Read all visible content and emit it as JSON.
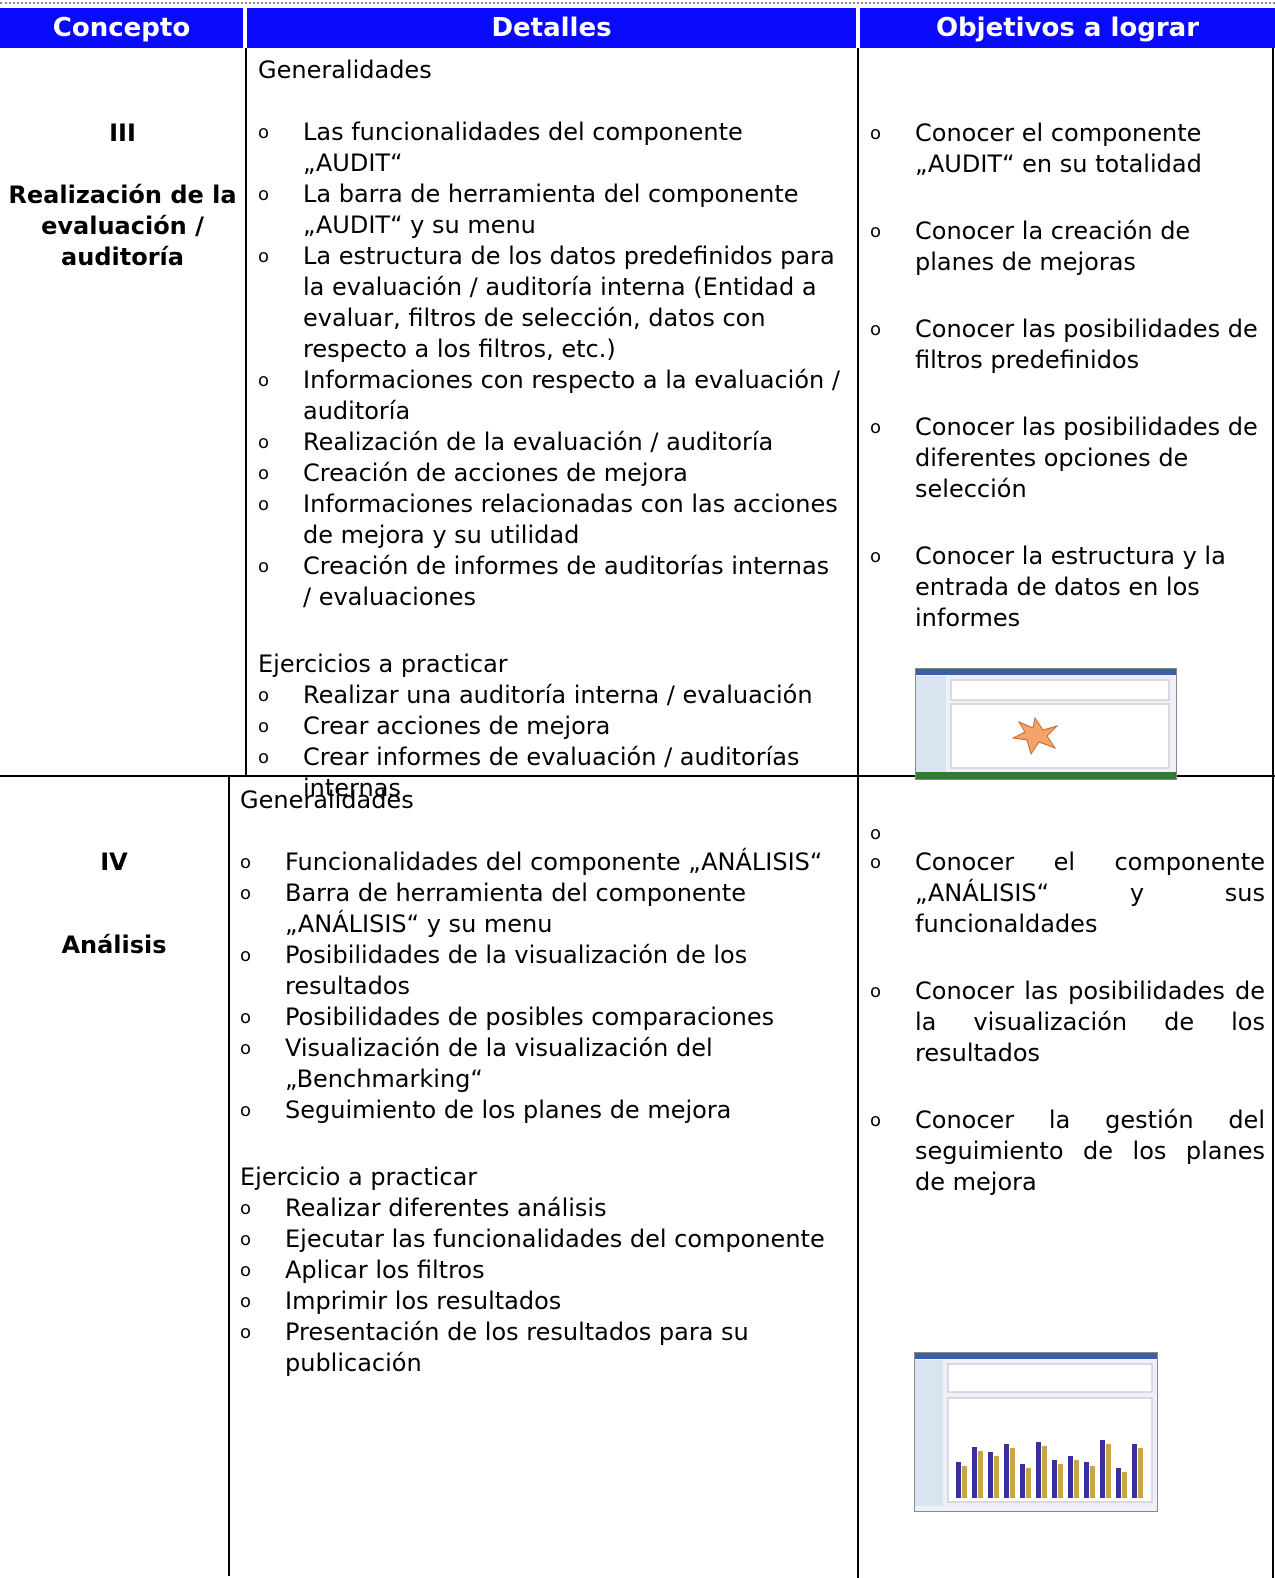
{
  "header": [
    "Concepto",
    "Detalles",
    "Objetivos a lograr"
  ],
  "rows": [
    {
      "concept": {
        "number": "III",
        "title": "Realización de la evaluación / auditoría"
      },
      "details": [
        {
          "heading": "Generalidades",
          "items": [
            "Las funcionalidades del componente „AUDIT“",
            "La barra de herramienta del componente „AUDIT“ y su menu",
            "La estructura de los datos predefinidos para la evaluación / auditoría interna (Entidad a evaluar, filtros de selección, datos con respecto a los filtros, etc.)",
            "Informaciones con respecto a la evaluación / auditoría",
            "Realización de la evaluación / auditoría",
            "Creación de acciones de mejora",
            "Informaciones relacionadas con las acciones de mejora y su utilidad",
            "Creación de informes de auditorías internas / evaluaciones"
          ]
        },
        {
          "heading": "Ejercicios a practicar",
          "items": [
            "Realizar una auditoría interna / evaluación",
            "Crear acciones de mejora",
            "Crear informes de evaluación / auditorías internas"
          ]
        }
      ],
      "objectives": [
        "Conocer el componente „AUDIT“ en su totalidad",
        "Conocer la creación de planes de mejoras",
        "Conocer las posibilidades de filtros predefinidos",
        "Conocer las posibilidades de diferentes opciones de selección",
        "Conocer la estructura y la entrada de datos en los informes"
      ]
    },
    {
      "concept": {
        "number": "IV",
        "title": "Análisis"
      },
      "details": [
        {
          "heading": "Generalidades",
          "items": [
            "Funcionalidades del componente „ANÁLISIS“",
            "Barra de herramienta del componente „ANÁLISIS“ y su menu",
            "Posibilidades de la visualización de los resultados",
            "Posibilidades de posibles comparaciones",
            "Visualización de la visualización del „Benchmarking“",
            "Seguimiento de los planes de mejora"
          ]
        },
        {
          "heading": "Ejercicio a practicar",
          "items": [
            "Realizar diferentes análisis",
            "Ejecutar las funcionalidades del componente",
            "Aplicar los filtros",
            "Imprimir los resultados",
            "Presentación de los resultados para su publicación"
          ]
        }
      ],
      "objectives": [
        "Conocer el componente „ANÁLISIS“ y sus funcionaldades",
        "Conocer las posibilidades de la visualización de los resultados",
        "Conocer la gestión del seguimiento de los planes de mejora"
      ]
    }
  ]
}
